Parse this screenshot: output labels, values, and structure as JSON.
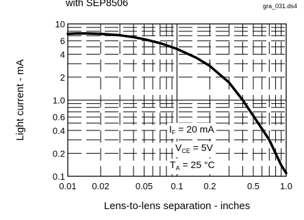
{
  "header": {
    "title": "with SEP8506",
    "file_tag": "gra_031.ds4"
  },
  "annotations": {
    "line1_main": "I",
    "line1_sub": "F",
    "line1_rest": " = 20 mA",
    "line2_main": "V",
    "line2_sub": "CE",
    "line2_rest": " = 5V",
    "line3_main": "T",
    "line3_sub": "A",
    "line3_rest": " = 25 °C"
  },
  "chart_data": {
    "type": "line",
    "xscale": "log",
    "yscale": "log",
    "xlim": [
      0.01,
      1.0
    ],
    "ylim": [
      0.1,
      10
    ],
    "xlabel": "Lens-to-lens separation - inches",
    "ylabel": "Light current - mA",
    "grid": true,
    "x_ticks": [
      {
        "value": 0.01,
        "label": "0.01"
      },
      {
        "value": 0.02,
        "label": "0.02"
      },
      {
        "value": 0.05,
        "label": "0.05"
      },
      {
        "value": 0.1,
        "label": "0.1"
      },
      {
        "value": 0.2,
        "label": "0.2"
      },
      {
        "value": 0.5,
        "label": "0.5"
      },
      {
        "value": 1.0,
        "label": "1.0"
      }
    ],
    "y_ticks": [
      {
        "value": 10,
        "label": "10"
      },
      {
        "value": 6,
        "label": "6"
      },
      {
        "value": 4,
        "label": "4"
      },
      {
        "value": 2,
        "label": "2"
      },
      {
        "value": 1.0,
        "label": "1.0"
      },
      {
        "value": 0.6,
        "label": "0.6"
      },
      {
        "value": 0.4,
        "label": "0.4"
      },
      {
        "value": 0.2,
        "label": "0.2"
      },
      {
        "value": 0.1,
        "label": "0.1"
      }
    ],
    "series": [
      {
        "x": [
          0.01,
          0.012,
          0.015,
          0.02,
          0.03,
          0.04,
          0.05,
          0.07,
          0.1,
          0.15,
          0.2,
          0.3,
          0.4,
          0.5,
          0.6,
          0.7,
          0.8,
          0.9,
          1.0
        ],
        "y": [
          7.4,
          7.5,
          7.5,
          7.4,
          7.1,
          6.7,
          6.3,
          5.6,
          4.7,
          3.6,
          2.8,
          1.7,
          1.0,
          0.62,
          0.42,
          0.3,
          0.2,
          0.14,
          0.11
        ]
      }
    ]
  }
}
